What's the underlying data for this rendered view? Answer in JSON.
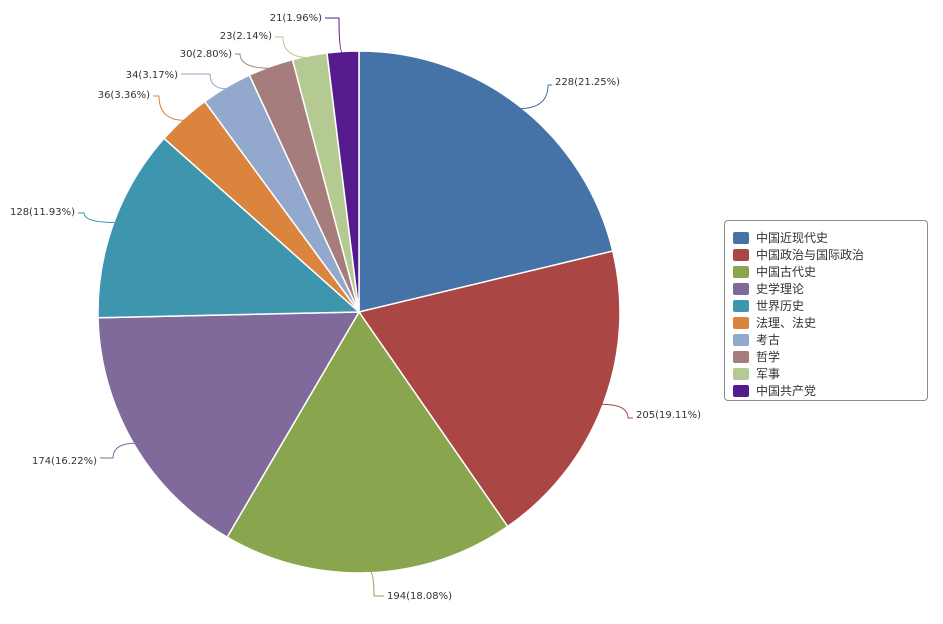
{
  "chart_data": {
    "type": "pie",
    "title": "",
    "legend_position": "right",
    "slices": [
      {
        "name": "中国近现代史",
        "value": 228,
        "label": "228(21.25%)",
        "color": "#4572A7"
      },
      {
        "name": "中国政治与国际政治",
        "value": 205,
        "label": "205(19.11%)",
        "color": "#AA4643"
      },
      {
        "name": "中国古代史",
        "value": 194,
        "label": "194(18.08%)",
        "color": "#89A54E"
      },
      {
        "name": "史学理论",
        "value": 174,
        "label": "174(16.22%)",
        "color": "#80699B"
      },
      {
        "name": "世界历史",
        "value": 128,
        "label": "128(11.93%)",
        "color": "#3D96AE"
      },
      {
        "name": "法理、法史",
        "value": 36,
        "label": "36(3.36%)",
        "color": "#DB843D"
      },
      {
        "name": "考古",
        "value": 34,
        "label": "34(3.17%)",
        "color": "#92A8CD"
      },
      {
        "name": "哲学",
        "value": 30,
        "label": "30(2.80%)",
        "color": "#A47D7C"
      },
      {
        "name": "军事",
        "value": 23,
        "label": "23(2.14%)",
        "color": "#B5CA92"
      },
      {
        "name": "中国共产党",
        "value": 21,
        "label": "21(1.96%)",
        "color": "#551A8B"
      }
    ]
  }
}
